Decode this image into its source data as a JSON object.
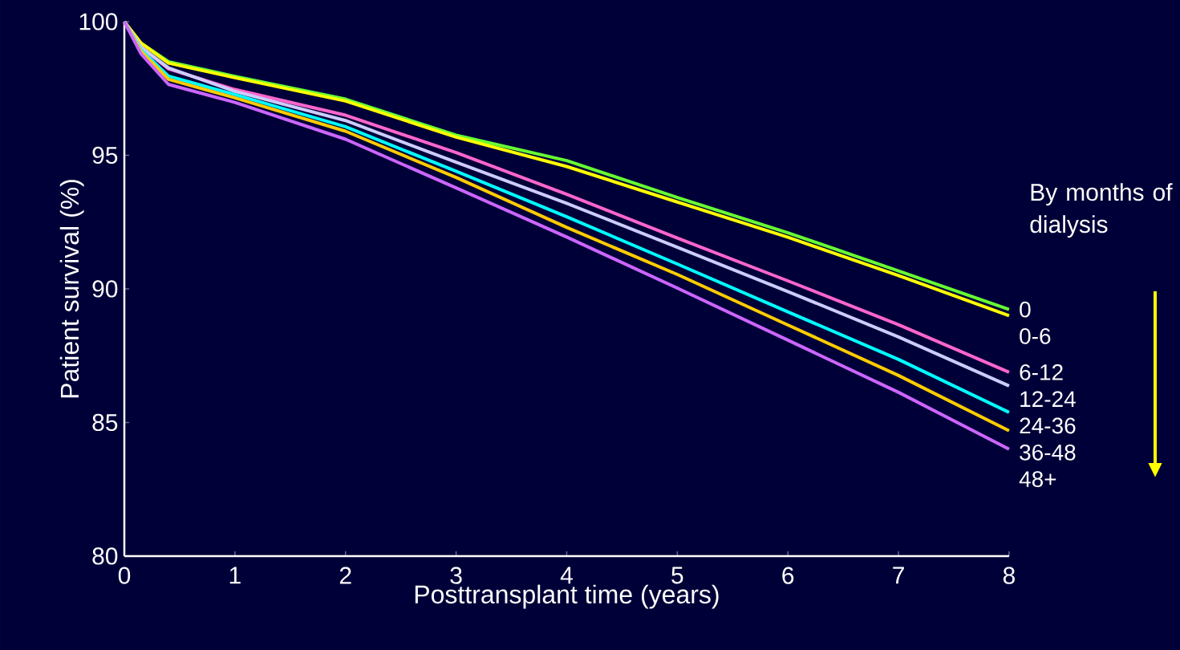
{
  "chart_data": {
    "type": "line",
    "xlabel": "Posttransplant time (years)",
    "ylabel": "Patient survival (%)",
    "legend_title": "By months of dialysis",
    "x": [
      0,
      0.15,
      0.4,
      1,
      2,
      3,
      4,
      5,
      6,
      7,
      8
    ],
    "series": [
      {
        "name": "0",
        "color": "#66ff33",
        "values": [
          100,
          99.2,
          98.5,
          97.95,
          97.1,
          95.75,
          94.8,
          93.42,
          92.1,
          90.67,
          89.23
        ]
      },
      {
        "name": "0-6",
        "color": "#ffff00",
        "values": [
          100,
          99.2,
          98.45,
          97.9,
          97.03,
          95.68,
          94.58,
          93.25,
          91.93,
          90.5,
          89.0
        ]
      },
      {
        "name": "6-12",
        "color": "#ff66cc",
        "values": [
          100,
          99.05,
          98.23,
          97.46,
          96.5,
          95.1,
          93.54,
          91.9,
          90.3,
          88.66,
          86.88
        ]
      },
      {
        "name": "12-24",
        "color": "#ccccff",
        "values": [
          100,
          99.05,
          98.27,
          97.39,
          96.3,
          94.74,
          93.2,
          91.56,
          89.9,
          88.2,
          86.37
        ]
      },
      {
        "name": "24-36",
        "color": "#00ffff",
        "values": [
          100,
          98.95,
          97.96,
          97.27,
          96.07,
          94.4,
          92.7,
          90.93,
          89.14,
          87.36,
          85.38
        ]
      },
      {
        "name": "36-48",
        "color": "#ffcc00",
        "values": [
          100,
          98.9,
          97.84,
          97.15,
          95.9,
          94.17,
          92.3,
          90.54,
          88.65,
          86.76,
          84.69
        ]
      },
      {
        "name": "48+",
        "color": "#cc66ff",
        "values": [
          100,
          98.8,
          97.65,
          96.98,
          95.6,
          93.78,
          91.94,
          90.03,
          88.08,
          86.13,
          84.0
        ]
      }
    ],
    "xlim": [
      0,
      8
    ],
    "xticks": [
      0,
      1,
      2,
      3,
      4,
      5,
      6,
      7,
      8
    ],
    "ylim": [
      80,
      100
    ],
    "yticks": [
      80,
      85,
      90,
      95,
      100
    ],
    "grid": false,
    "legend": "right",
    "marker": "none",
    "line_style": "solid"
  }
}
